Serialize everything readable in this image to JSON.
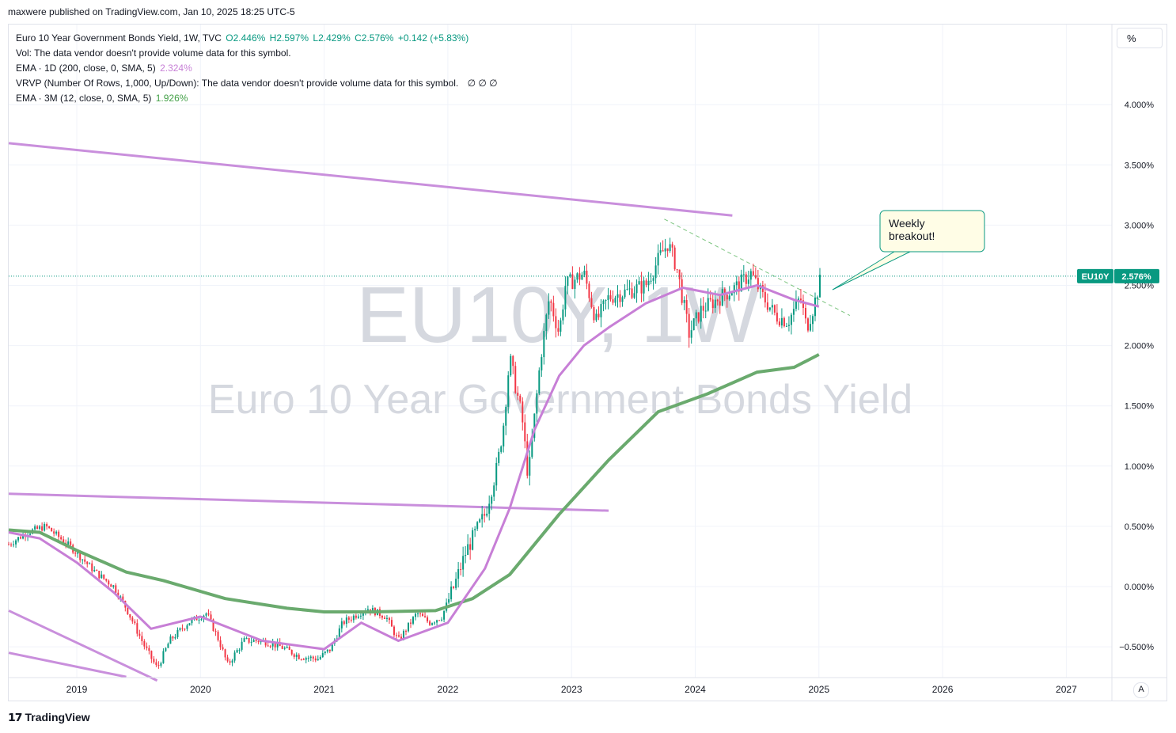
{
  "header": {
    "published": "maxwere published on TradingView.com, Jan 10, 2025 18:25 UTC-5"
  },
  "legend": {
    "symbol_line": "Euro 10 Year Government Bonds Yield, 1W, TVC",
    "open": "O2.446%",
    "high": "H2.597%",
    "low": "L2.429%",
    "close": "C2.576%",
    "change": "+0.142 (+5.83%)",
    "vol": "Vol: The data vendor doesn't provide volume data for this symbol.",
    "ema1": "EMA · 1D (200, close, 0, SMA, 5)",
    "ema1_val": "2.324%",
    "vrvp": "VRVP (Number Of Rows, 1,000, Up/Down): The data vendor doesn't provide volume data for this symbol.",
    "vrvp_marks": "∅  ∅  ∅",
    "ema2": "EMA · 3M (12, close, 0, SMA, 5)",
    "ema2_val": "1.926%"
  },
  "toolbar": {
    "percent_label": "%",
    "auto_label": "A"
  },
  "watermark": {
    "symbol": "EU10Y, 1W",
    "name": "Euro 10 Year Government Bonds Yield"
  },
  "annotation": {
    "text_line1": "Weekly",
    "text_line2": "breakout!"
  },
  "price_label": {
    "ticker": "EU10Y",
    "value": "2.576%"
  },
  "footer": {
    "brand": "TradingView"
  },
  "colors": {
    "up": "#089981",
    "down": "#f23645",
    "ema1": "#c77fd6",
    "ema2": "#6aaa6e",
    "trendline": "#c98fdc",
    "price_tag": "#089981",
    "annotation_bg": "#fffde6",
    "annotation_border": "#089981"
  },
  "chart_data": {
    "type": "candlestick",
    "y_axis_ticks": [
      "4.000%",
      "3.500%",
      "3.000%",
      "2.500%",
      "2.000%",
      "1.500%",
      "1.000%",
      "0.500%",
      "0.000%",
      "−0.500%"
    ],
    "y_axis_values": [
      4.0,
      3.5,
      3.0,
      2.5,
      2.0,
      1.5,
      1.0,
      0.5,
      0.0,
      -0.5
    ],
    "x_axis_ticks": [
      "2019",
      "2020",
      "2021",
      "2022",
      "2023",
      "2024",
      "2025",
      "2026",
      "2027"
    ],
    "x_axis_years": [
      2019,
      2020,
      2021,
      2022,
      2023,
      2024,
      2025,
      2026,
      2027
    ],
    "x_range": [
      2018.45,
      2027.6
    ],
    "y_range": [
      -0.75,
      4.7
    ],
    "last_close": 2.576,
    "price_path": [
      [
        2018.45,
        0.35
      ],
      [
        2018.6,
        0.45
      ],
      [
        2018.75,
        0.5
      ],
      [
        2018.95,
        0.33
      ],
      [
        2019.15,
        0.12
      ],
      [
        2019.3,
        0.0
      ],
      [
        2019.4,
        -0.18
      ],
      [
        2019.55,
        -0.5
      ],
      [
        2019.65,
        -0.68
      ],
      [
        2019.75,
        -0.45
      ],
      [
        2019.9,
        -0.3
      ],
      [
        2020.05,
        -0.22
      ],
      [
        2020.15,
        -0.45
      ],
      [
        2020.22,
        -0.65
      ],
      [
        2020.35,
        -0.45
      ],
      [
        2020.5,
        -0.45
      ],
      [
        2020.65,
        -0.5
      ],
      [
        2020.8,
        -0.58
      ],
      [
        2020.95,
        -0.6
      ],
      [
        2021.05,
        -0.52
      ],
      [
        2021.15,
        -0.3
      ],
      [
        2021.35,
        -0.18
      ],
      [
        2021.5,
        -0.25
      ],
      [
        2021.6,
        -0.45
      ],
      [
        2021.75,
        -0.22
      ],
      [
        2021.85,
        -0.3
      ],
      [
        2021.95,
        -0.25
      ],
      [
        2022.05,
        0.0
      ],
      [
        2022.15,
        0.3
      ],
      [
        2022.3,
        0.6
      ],
      [
        2022.4,
        1.0
      ],
      [
        2022.45,
        1.35
      ],
      [
        2022.5,
        1.9
      ],
      [
        2022.6,
        1.4
      ],
      [
        2022.65,
        0.9
      ],
      [
        2022.75,
        1.9
      ],
      [
        2022.82,
        2.4
      ],
      [
        2022.9,
        2.1
      ],
      [
        2022.95,
        2.5
      ],
      [
        2023.1,
        2.6
      ],
      [
        2023.2,
        2.2
      ],
      [
        2023.3,
        2.4
      ],
      [
        2023.45,
        2.45
      ],
      [
        2023.6,
        2.5
      ],
      [
        2023.72,
        2.75
      ],
      [
        2023.78,
        2.85
      ],
      [
        2023.85,
        2.65
      ],
      [
        2023.95,
        2.1
      ],
      [
        2024.05,
        2.3
      ],
      [
        2024.2,
        2.4
      ],
      [
        2024.35,
        2.5
      ],
      [
        2024.45,
        2.6
      ],
      [
        2024.55,
        2.4
      ],
      [
        2024.65,
        2.25
      ],
      [
        2024.75,
        2.2
      ],
      [
        2024.85,
        2.4
      ],
      [
        2024.9,
        2.15
      ],
      [
        2024.95,
        2.3
      ],
      [
        2025.02,
        2.576
      ]
    ],
    "ema_1d_200": [
      [
        2018.45,
        0.45
      ],
      [
        2018.7,
        0.4
      ],
      [
        2019.0,
        0.2
      ],
      [
        2019.3,
        -0.05
      ],
      [
        2019.6,
        -0.35
      ],
      [
        2020.0,
        -0.25
      ],
      [
        2020.5,
        -0.45
      ],
      [
        2021.0,
        -0.52
      ],
      [
        2021.3,
        -0.3
      ],
      [
        2021.6,
        -0.45
      ],
      [
        2022.0,
        -0.3
      ],
      [
        2022.3,
        0.15
      ],
      [
        2022.5,
        0.65
      ],
      [
        2022.7,
        1.3
      ],
      [
        2022.9,
        1.75
      ],
      [
        2023.1,
        2.0
      ],
      [
        2023.3,
        2.15
      ],
      [
        2023.6,
        2.35
      ],
      [
        2023.9,
        2.48
      ],
      [
        2024.2,
        2.42
      ],
      [
        2024.5,
        2.5
      ],
      [
        2024.8,
        2.38
      ],
      [
        2025.0,
        2.324
      ]
    ],
    "ema_3m_12": [
      [
        2018.45,
        0.47
      ],
      [
        2018.7,
        0.45
      ],
      [
        2019.0,
        0.3
      ],
      [
        2019.4,
        0.12
      ],
      [
        2019.7,
        0.05
      ],
      [
        2020.2,
        -0.1
      ],
      [
        2020.7,
        -0.18
      ],
      [
        2021.0,
        -0.21
      ],
      [
        2021.4,
        -0.21
      ],
      [
        2021.9,
        -0.2
      ],
      [
        2022.2,
        -0.1
      ],
      [
        2022.5,
        0.1
      ],
      [
        2022.9,
        0.6
      ],
      [
        2023.3,
        1.05
      ],
      [
        2023.7,
        1.45
      ],
      [
        2024.1,
        1.6
      ],
      [
        2024.5,
        1.78
      ],
      [
        2024.8,
        1.82
      ],
      [
        2025.0,
        1.926
      ]
    ],
    "trendlines": [
      {
        "points": [
          [
            2018.45,
            3.68
          ],
          [
            2024.3,
            3.08
          ]
        ],
        "style": "solid"
      },
      {
        "points": [
          [
            2018.45,
            0.77
          ],
          [
            2023.3,
            0.63
          ]
        ],
        "style": "solid"
      },
      {
        "points": [
          [
            2018.45,
            -0.2
          ],
          [
            2019.65,
            -0.78
          ]
        ],
        "style": "solid"
      },
      {
        "points": [
          [
            2018.45,
            -0.55
          ],
          [
            2019.4,
            -0.75
          ]
        ],
        "style": "solid"
      },
      {
        "points": [
          [
            2023.75,
            3.05
          ],
          [
            2025.25,
            2.25
          ]
        ],
        "style": "dashed"
      }
    ]
  }
}
